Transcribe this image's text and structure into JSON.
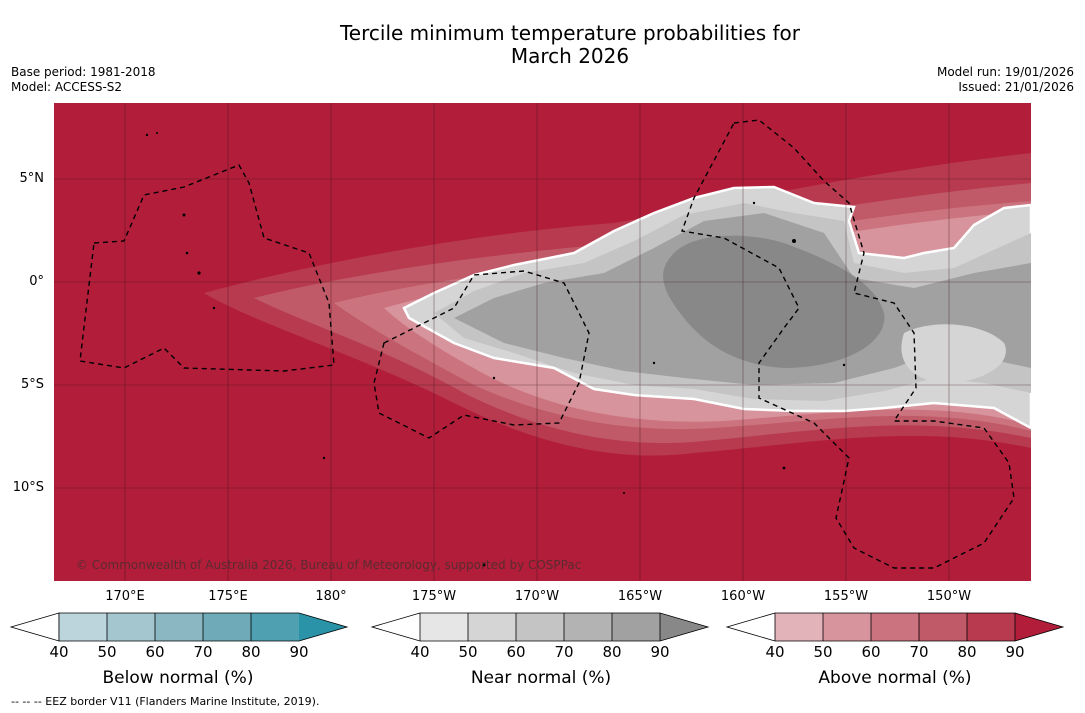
{
  "title": {
    "line1": "Tercile minimum temperature probabilities for",
    "line2": "March 2026"
  },
  "meta": {
    "base_period": "Base period: 1981-2018",
    "model": "Model: ACCESS-S2",
    "model_run": "Model run: 19/01/2026",
    "issued": "Issued: 21/01/2026"
  },
  "map": {
    "lat_labels": [
      "5°N",
      "0°",
      "5°S",
      "10°S"
    ],
    "lon_labels": [
      "170°E",
      "175°E",
      "180°",
      "175°W",
      "170°W",
      "165°W",
      "160°W",
      "155°W",
      "150°W"
    ],
    "copyright": "© Commonwealth of Australia 2026, Bureau of Meteorology, supported by COSPPac"
  },
  "colorbars": {
    "below": {
      "title": "Below normal (%)",
      "ticks": [
        "40",
        "50",
        "60",
        "70",
        "80",
        "90"
      ],
      "colors": [
        "#bcd4dc",
        "#a4c6ce",
        "#8ab7c2",
        "#6eaab7",
        "#4fa0b0",
        "#2a93a8"
      ]
    },
    "near": {
      "title": "Near normal (%)",
      "ticks": [
        "40",
        "50",
        "60",
        "70",
        "80",
        "90"
      ],
      "colors": [
        "#e6e6e6",
        "#d5d5d5",
        "#c4c4c4",
        "#b3b3b3",
        "#a1a1a1",
        "#888888"
      ]
    },
    "above": {
      "title": "Above normal (%)",
      "ticks": [
        "40",
        "50",
        "60",
        "70",
        "80",
        "90"
      ],
      "colors": [
        "#e2b4ba",
        "#d8949c",
        "#cb747f",
        "#c05a68",
        "#b83a4f",
        "#b21e3a"
      ]
    }
  },
  "footnote": "-- -- -- EEZ border V11 (Flanders Marine Institute, 2019)."
}
